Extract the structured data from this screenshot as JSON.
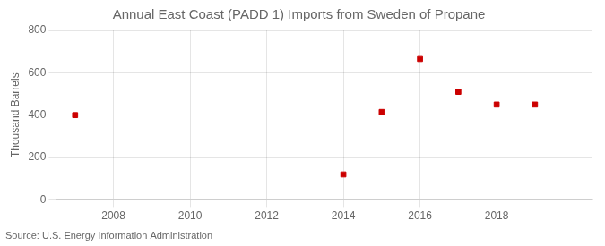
{
  "chart_data": {
    "type": "scatter",
    "title": "Annual East Coast (PADD 1) Imports from Sweden of Propane",
    "ylabel": "Thousand Barrels",
    "source": "Source: U.S. Energy Information Administration",
    "x": [
      2007,
      2014,
      2015,
      2016,
      2017,
      2018,
      2019
    ],
    "values": [
      400,
      120,
      415,
      665,
      510,
      450,
      450
    ],
    "color": "#cc0000",
    "marker": "square",
    "xlim": [
      2006.5,
      2020.5
    ],
    "ylim": [
      0,
      800
    ],
    "xticks": [
      2008,
      2010,
      2012,
      2014,
      2016,
      2018
    ],
    "yticks": [
      0,
      200,
      400,
      600,
      800
    ],
    "grid": true
  }
}
